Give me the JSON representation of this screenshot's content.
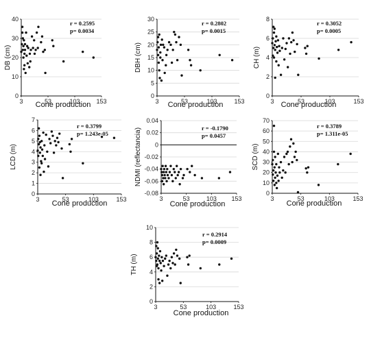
{
  "chart_data": [
    {
      "type": "scatter",
      "ylabel": "DB (cm)",
      "xlabel": "Cone production",
      "xticks": [
        "3",
        "53",
        "103",
        "153"
      ],
      "yticks": [
        "0",
        "10",
        "20",
        "30",
        "40"
      ],
      "xlim": [
        3,
        153
      ],
      "ylim": [
        0,
        40
      ],
      "r_text": "r = 0.2595",
      "p_text": "p= 0.0034",
      "points": [
        [
          3,
          23
        ],
        [
          4,
          27
        ],
        [
          5,
          33
        ],
        [
          5,
          36
        ],
        [
          6,
          30
        ],
        [
          6,
          24
        ],
        [
          7,
          20
        ],
        [
          7,
          26
        ],
        [
          8,
          14
        ],
        [
          8,
          29
        ],
        [
          9,
          16
        ],
        [
          9,
          22
        ],
        [
          10,
          24
        ],
        [
          10,
          27
        ],
        [
          11,
          12
        ],
        [
          12,
          33
        ],
        [
          13,
          21
        ],
        [
          14,
          26
        ],
        [
          15,
          17
        ],
        [
          16,
          25
        ],
        [
          18,
          15
        ],
        [
          19,
          22
        ],
        [
          20,
          18
        ],
        [
          21,
          24
        ],
        [
          23,
          31
        ],
        [
          25,
          25
        ],
        [
          27,
          29
        ],
        [
          28,
          22
        ],
        [
          30,
          24
        ],
        [
          32,
          33
        ],
        [
          34,
          25
        ],
        [
          35,
          36
        ],
        [
          40,
          28
        ],
        [
          42,
          31
        ],
        [
          44,
          23
        ],
        [
          47,
          24
        ],
        [
          48,
          12
        ],
        [
          61,
          29
        ],
        [
          63,
          26
        ],
        [
          82,
          18
        ],
        [
          118,
          23
        ],
        [
          138,
          20
        ]
      ]
    },
    {
      "type": "scatter",
      "ylabel": "DBH (cm)",
      "xlabel": "Cone production",
      "xticks": [
        "3",
        "53",
        "103",
        "153"
      ],
      "yticks": [
        "0",
        "5",
        "10",
        "15",
        "20",
        "25",
        "30"
      ],
      "xlim": [
        3,
        153
      ],
      "ylim": [
        0,
        30
      ],
      "r_text": "r = 0.2802",
      "p_text": "p= 0.0015",
      "points": [
        [
          3,
          18
        ],
        [
          4,
          21
        ],
        [
          5,
          16
        ],
        [
          5,
          23
        ],
        [
          6,
          13
        ],
        [
          6,
          19
        ],
        [
          7,
          10
        ],
        [
          7,
          24
        ],
        [
          8,
          7
        ],
        [
          9,
          17
        ],
        [
          9,
          15
        ],
        [
          10,
          20
        ],
        [
          11,
          6
        ],
        [
          12,
          22
        ],
        [
          13,
          14
        ],
        [
          14,
          20
        ],
        [
          16,
          19
        ],
        [
          17,
          9
        ],
        [
          19,
          12
        ],
        [
          20,
          16
        ],
        [
          22,
          18
        ],
        [
          25,
          21
        ],
        [
          28,
          20
        ],
        [
          30,
          13
        ],
        [
          32,
          18
        ],
        [
          34,
          25
        ],
        [
          36,
          24
        ],
        [
          38,
          21
        ],
        [
          40,
          14
        ],
        [
          43,
          23
        ],
        [
          46,
          20
        ],
        [
          48,
          8
        ],
        [
          60,
          18
        ],
        [
          63,
          14
        ],
        [
          65,
          12
        ],
        [
          82,
          10
        ],
        [
          117,
          16
        ],
        [
          140,
          14
        ]
      ]
    },
    {
      "type": "scatter",
      "ylabel": "CH (m)",
      "xlabel": "Cone production",
      "xticks": [
        "3",
        "53",
        "103",
        "153"
      ],
      "yticks": [
        "0",
        "2",
        "4",
        "6",
        "8"
      ],
      "xlim": [
        3,
        153
      ],
      "ylim": [
        0,
        8
      ],
      "r_text": "r = 0.3052",
      "p_text": "p= 0.0005",
      "points": [
        [
          3,
          5.5
        ],
        [
          4,
          4.2
        ],
        [
          4,
          6.0
        ],
        [
          5,
          7.2
        ],
        [
          5,
          5.0
        ],
        [
          6,
          6.6
        ],
        [
          6,
          4.0
        ],
        [
          7,
          5.3
        ],
        [
          7,
          7.0
        ],
        [
          8,
          1.9
        ],
        [
          8,
          4.8
        ],
        [
          9,
          5.7
        ],
        [
          10,
          3.6
        ],
        [
          10,
          6.2
        ],
        [
          11,
          5.1
        ],
        [
          12,
          4.5
        ],
        [
          13,
          5.8
        ],
        [
          14,
          3.2
        ],
        [
          15,
          5.2
        ],
        [
          16,
          4.7
        ],
        [
          18,
          2.2
        ],
        [
          20,
          5.0
        ],
        [
          22,
          6.0
        ],
        [
          24,
          3.8
        ],
        [
          26,
          4.9
        ],
        [
          28,
          5.5
        ],
        [
          30,
          3.0
        ],
        [
          32,
          6.0
        ],
        [
          34,
          4.4
        ],
        [
          36,
          5.6
        ],
        [
          38,
          6.6
        ],
        [
          40,
          5.8
        ],
        [
          42,
          4.6
        ],
        [
          46,
          5.4
        ],
        [
          48,
          2.2
        ],
        [
          60,
          5.0
        ],
        [
          62,
          4.4
        ],
        [
          64,
          5.2
        ],
        [
          84,
          3.9
        ],
        [
          118,
          4.8
        ],
        [
          140,
          5.6
        ]
      ]
    },
    {
      "type": "scatter",
      "ylabel": "LCD (m)",
      "xlabel": "Cone production",
      "xticks": [
        "3",
        "53",
        "103",
        "153"
      ],
      "yticks": [
        "0",
        "1",
        "2",
        "3",
        "4",
        "5",
        "6",
        "7"
      ],
      "xlim": [
        3,
        153
      ],
      "ylim": [
        0,
        7
      ],
      "r_text": "r = 0.3799",
      "p_text": "p= 1.243e-05",
      "points": [
        [
          3,
          4.1
        ],
        [
          4,
          5.2
        ],
        [
          4,
          3.6
        ],
        [
          5,
          6.2
        ],
        [
          5,
          4.7
        ],
        [
          6,
          5.5
        ],
        [
          6,
          2.5
        ],
        [
          7,
          3.9
        ],
        [
          7,
          4.9
        ],
        [
          8,
          1.8
        ],
        [
          8,
          4.4
        ],
        [
          9,
          3.1
        ],
        [
          10,
          5.0
        ],
        [
          10,
          2.9
        ],
        [
          11,
          4.2
        ],
        [
          12,
          3.6
        ],
        [
          13,
          5.8
        ],
        [
          14,
          2.1
        ],
        [
          15,
          4.6
        ],
        [
          16,
          3.3
        ],
        [
          18,
          5.6
        ],
        [
          20,
          4.0
        ],
        [
          22,
          2.6
        ],
        [
          24,
          5.2
        ],
        [
          26,
          4.8
        ],
        [
          28,
          5.9
        ],
        [
          30,
          5.5
        ],
        [
          32,
          3.9
        ],
        [
          34,
          5.0
        ],
        [
          36,
          4.6
        ],
        [
          38,
          5.3
        ],
        [
          40,
          4.9
        ],
        [
          42,
          5.7
        ],
        [
          46,
          4.3
        ],
        [
          48,
          1.5
        ],
        [
          60,
          4.7
        ],
        [
          62,
          4.0
        ],
        [
          64,
          5.2
        ],
        [
          84,
          2.9
        ],
        [
          118,
          5.4
        ],
        [
          140,
          5.3
        ]
      ]
    },
    {
      "type": "scatter",
      "ylabel": "NDMI (reflectancia)",
      "xlabel": "Cone production",
      "xticks": [
        "3",
        "53",
        "103",
        "153"
      ],
      "yticks": [
        "-0.08",
        "-0.06",
        "-0.04",
        "-0.02",
        "0",
        "0.02",
        "0.04"
      ],
      "xlim": [
        3,
        153
      ],
      "ylim": [
        -0.08,
        0.04
      ],
      "zero_line": true,
      "r_text": "r = -0.1790",
      "p_text": "p= 0.0457",
      "points": [
        [
          3,
          -0.04
        ],
        [
          4,
          -0.045
        ],
        [
          5,
          -0.05
        ],
        [
          5,
          -0.06
        ],
        [
          6,
          -0.035
        ],
        [
          7,
          -0.055
        ],
        [
          8,
          -0.045
        ],
        [
          8,
          -0.065
        ],
        [
          9,
          -0.04
        ],
        [
          10,
          -0.05
        ],
        [
          11,
          -0.055
        ],
        [
          12,
          -0.035
        ],
        [
          13,
          -0.045
        ],
        [
          14,
          -0.06
        ],
        [
          15,
          -0.04
        ],
        [
          16,
          -0.05
        ],
        [
          18,
          -0.055
        ],
        [
          20,
          -0.045
        ],
        [
          22,
          -0.035
        ],
        [
          24,
          -0.05
        ],
        [
          26,
          -0.06
        ],
        [
          28,
          -0.04
        ],
        [
          30,
          -0.045
        ],
        [
          32,
          -0.055
        ],
        [
          34,
          -0.035
        ],
        [
          36,
          -0.05
        ],
        [
          38,
          -0.045
        ],
        [
          40,
          -0.065
        ],
        [
          42,
          -0.04
        ],
        [
          46,
          -0.055
        ],
        [
          48,
          -0.05
        ],
        [
          55,
          -0.04
        ],
        [
          60,
          -0.045
        ],
        [
          64,
          -0.035
        ],
        [
          70,
          -0.05
        ],
        [
          84,
          -0.055
        ],
        [
          118,
          -0.055
        ],
        [
          140,
          -0.045
        ]
      ]
    },
    {
      "type": "scatter",
      "ylabel": "SCD (m)",
      "xlabel": "Cone production",
      "xticks": [
        "3",
        "53",
        "103",
        "153"
      ],
      "yticks": [
        "0",
        "10",
        "20",
        "30",
        "40",
        "50",
        "60",
        "70"
      ],
      "xlim": [
        3,
        153
      ],
      "ylim": [
        0,
        70
      ],
      "r_text": "r = 0.3789",
      "p_text": "p= 1.311e-05",
      "points": [
        [
          3,
          28
        ],
        [
          4,
          32
        ],
        [
          4,
          18
        ],
        [
          5,
          12
        ],
        [
          5,
          22
        ],
        [
          6,
          65
        ],
        [
          6,
          40
        ],
        [
          7,
          25
        ],
        [
          7,
          8
        ],
        [
          8,
          35
        ],
        [
          8,
          15
        ],
        [
          9,
          20
        ],
        [
          10,
          10
        ],
        [
          10,
          28
        ],
        [
          11,
          5
        ],
        [
          12,
          17
        ],
        [
          13,
          38
        ],
        [
          14,
          12
        ],
        [
          15,
          25
        ],
        [
          16,
          20
        ],
        [
          18,
          30
        ],
        [
          20,
          15
        ],
        [
          22,
          22
        ],
        [
          24,
          35
        ],
        [
          26,
          20
        ],
        [
          28,
          38
        ],
        [
          30,
          40
        ],
        [
          32,
          28
        ],
        [
          34,
          45
        ],
        [
          36,
          52
        ],
        [
          38,
          30
        ],
        [
          40,
          48
        ],
        [
          42,
          35
        ],
        [
          44,
          40
        ],
        [
          46,
          32
        ],
        [
          48,
          1
        ],
        [
          62,
          24
        ],
        [
          64,
          20
        ],
        [
          66,
          25
        ],
        [
          84,
          8
        ],
        [
          118,
          28
        ],
        [
          140,
          38
        ]
      ]
    },
    {
      "type": "scatter",
      "ylabel": "TH (m)",
      "xlabel": "Cone production",
      "xticks": [
        "3",
        "53",
        "103",
        "153"
      ],
      "yticks": [
        "0",
        "2",
        "4",
        "6",
        "8",
        "10"
      ],
      "xlim": [
        3,
        153
      ],
      "ylim": [
        0,
        10
      ],
      "r_text": "r = 0.2914",
      "p_text": "p= 0.0009",
      "points": [
        [
          3,
          6.0
        ],
        [
          4,
          5.5
        ],
        [
          4,
          7.5
        ],
        [
          5,
          4.8
        ],
        [
          5,
          6.5
        ],
        [
          6,
          8.0
        ],
        [
          6,
          5.0
        ],
        [
          7,
          5.8
        ],
        [
          7,
          7.2
        ],
        [
          8,
          3.0
        ],
        [
          8,
          4.5
        ],
        [
          9,
          6.2
        ],
        [
          10,
          5.5
        ],
        [
          10,
          2.5
        ],
        [
          11,
          6.8
        ],
        [
          12,
          5.2
        ],
        [
          13,
          4.2
        ],
        [
          14,
          6.0
        ],
        [
          15,
          2.8
        ],
        [
          16,
          5.5
        ],
        [
          18,
          4.8
        ],
        [
          20,
          5.8
        ],
        [
          22,
          6.2
        ],
        [
          24,
          3.5
        ],
        [
          26,
          5.0
        ],
        [
          28,
          5.5
        ],
        [
          30,
          4.5
        ],
        [
          32,
          6.0
        ],
        [
          34,
          5.2
        ],
        [
          36,
          6.5
        ],
        [
          38,
          5.0
        ],
        [
          40,
          7.0
        ],
        [
          42,
          6.2
        ],
        [
          46,
          5.8
        ],
        [
          48,
          2.5
        ],
        [
          60,
          6.0
        ],
        [
          62,
          5.0
        ],
        [
          64,
          6.2
        ],
        [
          84,
          4.5
        ],
        [
          118,
          5.0
        ],
        [
          140,
          5.8
        ]
      ]
    }
  ]
}
